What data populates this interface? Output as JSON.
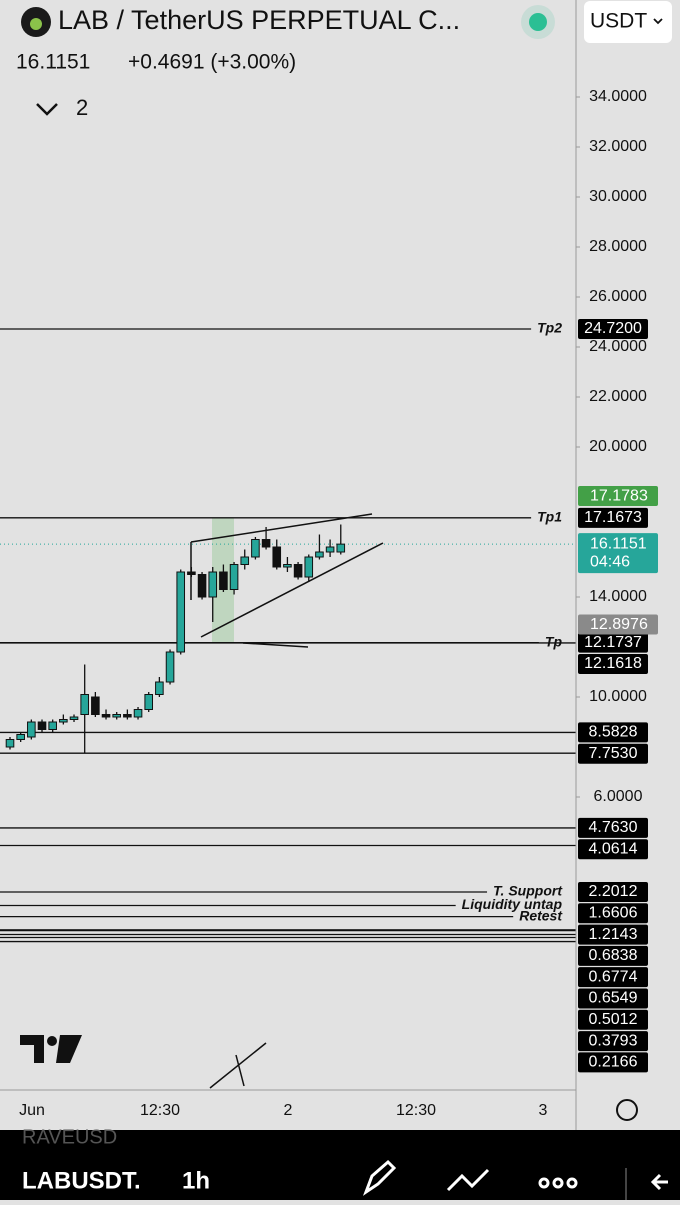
{
  "header": {
    "title": "LAB / TetherUS PERPETUAL C...",
    "price": "16.1151",
    "change": "+0.4691 (+3.00%)",
    "indicators_count": "2",
    "currency": "USDT"
  },
  "chart_data": {
    "type": "candlestick",
    "ylim": [
      -5.72,
      36.28
    ],
    "yticks": [
      {
        "value": 34,
        "label": "34.0000"
      },
      {
        "value": 32,
        "label": "32.0000"
      },
      {
        "value": 30,
        "label": "30.0000"
      },
      {
        "value": 28,
        "label": "28.0000"
      },
      {
        "value": 26,
        "label": "26.0000"
      },
      {
        "value": 24,
        "label": "24.0000"
      },
      {
        "value": 22,
        "label": "22.0000"
      },
      {
        "value": 20,
        "label": "20.0000"
      },
      {
        "value": 14,
        "label": "14.0000"
      },
      {
        "value": 10,
        "label": "10.0000"
      },
      {
        "value": 6,
        "label": "6.0000"
      }
    ],
    "colors": {
      "up": "#26a69a",
      "down": "#111111"
    },
    "candles": [
      {
        "open": 8.0,
        "high": 8.4,
        "low": 7.9,
        "close": 8.3
      },
      {
        "open": 8.3,
        "high": 8.6,
        "low": 8.2,
        "close": 8.5
      },
      {
        "open": 8.4,
        "high": 9.1,
        "low": 8.3,
        "close": 9.0
      },
      {
        "open": 9.0,
        "high": 9.1,
        "low": 8.6,
        "close": 8.7
      },
      {
        "open": 8.7,
        "high": 9.1,
        "low": 8.6,
        "close": 9.0
      },
      {
        "open": 9.0,
        "high": 9.3,
        "low": 8.9,
        "close": 9.1
      },
      {
        "open": 9.1,
        "high": 9.3,
        "low": 9.0,
        "close": 9.2
      },
      {
        "open": 9.3,
        "high": 11.3,
        "low": 7.75,
        "close": 10.1
      },
      {
        "open": 10.0,
        "high": 10.2,
        "low": 9.2,
        "close": 9.3
      },
      {
        "open": 9.3,
        "high": 9.5,
        "low": 9.1,
        "close": 9.2
      },
      {
        "open": 9.2,
        "high": 9.4,
        "low": 9.1,
        "close": 9.3
      },
      {
        "open": 9.3,
        "high": 9.5,
        "low": 9.1,
        "close": 9.2
      },
      {
        "open": 9.2,
        "high": 9.6,
        "low": 9.1,
        "close": 9.5
      },
      {
        "open": 9.5,
        "high": 10.2,
        "low": 9.4,
        "close": 10.1
      },
      {
        "open": 10.1,
        "high": 10.8,
        "low": 10.0,
        "close": 10.6
      },
      {
        "open": 10.6,
        "high": 11.9,
        "low": 10.5,
        "close": 11.8
      },
      {
        "open": 11.8,
        "high": 15.1,
        "low": 11.7,
        "close": 15.0
      },
      {
        "open": 15.0,
        "high": 15.2,
        "low": 14.8,
        "close": 14.9
      },
      {
        "open": 14.9,
        "high": 15.0,
        "low": 13.9,
        "close": 14.0
      },
      {
        "open": 14.0,
        "high": 15.2,
        "low": 13.0,
        "close": 15.0
      },
      {
        "open": 15.0,
        "high": 15.3,
        "low": 14.2,
        "close": 14.3
      },
      {
        "open": 14.3,
        "high": 15.4,
        "low": 14.1,
        "close": 15.3
      },
      {
        "open": 15.3,
        "high": 15.9,
        "low": 15.1,
        "close": 15.6
      },
      {
        "open": 15.6,
        "high": 16.4,
        "low": 15.5,
        "close": 16.3
      },
      {
        "open": 16.3,
        "high": 16.8,
        "low": 15.9,
        "close": 16.0
      },
      {
        "open": 16.0,
        "high": 16.3,
        "low": 15.1,
        "close": 15.2
      },
      {
        "open": 15.2,
        "high": 15.6,
        "low": 15.0,
        "close": 15.3
      },
      {
        "open": 15.3,
        "high": 15.4,
        "low": 14.7,
        "close": 14.8
      },
      {
        "open": 14.8,
        "high": 15.7,
        "low": 14.6,
        "close": 15.6
      },
      {
        "open": 15.6,
        "high": 16.5,
        "low": 15.5,
        "close": 15.8
      },
      {
        "open": 15.8,
        "high": 16.3,
        "low": 15.6,
        "close": 16.0
      },
      {
        "open": 15.8,
        "high": 16.9,
        "low": 15.7,
        "close": 16.1151
      }
    ],
    "last_price": {
      "value": 16.1151,
      "label": "16.1151",
      "countdown": "04:46",
      "color": "#26a69a"
    },
    "price_marks": [
      {
        "value": 17.1783,
        "label": "17.1783",
        "color": "#43a047"
      },
      {
        "value": 12.8976,
        "label": "12.8976",
        "color": "#8a8a8a"
      }
    ],
    "levels": [
      {
        "value": 24.72,
        "label": "24.7200",
        "name": "Tp2"
      },
      {
        "value": 17.1673,
        "label": "17.1673",
        "name": "Tp1"
      },
      {
        "value": 12.1737,
        "label": "12.1737",
        "name": "Tp"
      },
      {
        "value": 12.1618,
        "label": "12.1618"
      },
      {
        "value": 8.5828,
        "label": "8.5828"
      },
      {
        "value": 7.753,
        "label": "7.7530"
      },
      {
        "value": 4.763,
        "label": "4.7630"
      },
      {
        "value": 4.0614,
        "label": "4.0614"
      },
      {
        "value": 2.2012,
        "label": "2.2012",
        "name": "T. Support"
      },
      {
        "value": 1.6606,
        "label": "1.6606",
        "name": "Liquidity untap"
      },
      {
        "value": 1.2143,
        "label": "1.2143",
        "name": "Retest"
      },
      {
        "value": 0.6838,
        "label": "0.6838"
      },
      {
        "value": 0.6774,
        "label": "0.6774"
      },
      {
        "value": 0.6549,
        "label": "0.6549"
      },
      {
        "value": 0.5012,
        "label": "0.5012"
      },
      {
        "value": 0.3793,
        "label": "0.3793"
      },
      {
        "value": 0.2166,
        "label": "0.2166"
      }
    ],
    "x_labels": [
      "Jun",
      "12:30",
      "2",
      "12:30",
      "3"
    ]
  },
  "bottom_bar": {
    "ghost_symbol": "RAVEUSD",
    "symbol": "LABUSDT.",
    "interval": "1h"
  }
}
